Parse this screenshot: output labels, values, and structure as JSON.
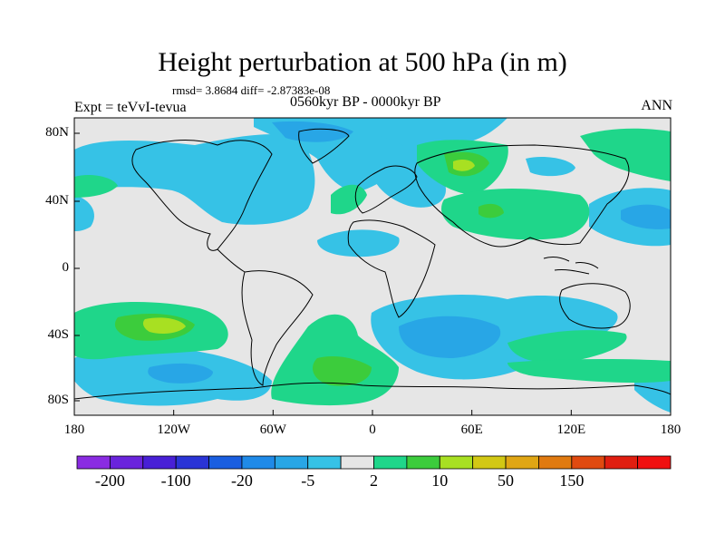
{
  "title": "Height perturbation at 500 hPa (in m)",
  "stats": "rmsd= 3.8684 diff= -2.87383e-08",
  "experiment": "Expt = teVvI-tevua",
  "period": "0560kyr BP - 0000kyr BP",
  "season": "ANN",
  "map": {
    "lon_range": [
      -180,
      180
    ],
    "lat_range": [
      -90,
      90
    ],
    "lat_ticks": [
      "80N",
      "40N",
      "0",
      "40S",
      "80S"
    ],
    "lon_ticks": [
      "180",
      "120W",
      "60W",
      "0",
      "60E",
      "120E",
      "180"
    ],
    "background_color": "#e6e6e6"
  },
  "colorbar": {
    "colors": [
      "#8a2be2",
      "#6a24dc",
      "#4820d6",
      "#2a34d6",
      "#1a5ee0",
      "#1f8ae8",
      "#28a6e6",
      "#36c2e6",
      "#e6e6e6",
      "#1fd68a",
      "#3ccc3c",
      "#a8e022",
      "#d2c814",
      "#e0a614",
      "#e07a10",
      "#e04a10",
      "#e01e10",
      "#f01010"
    ],
    "labels": [
      "-200",
      "-100",
      "-20",
      "-5",
      "2",
      "10",
      "50",
      "150"
    ]
  }
}
